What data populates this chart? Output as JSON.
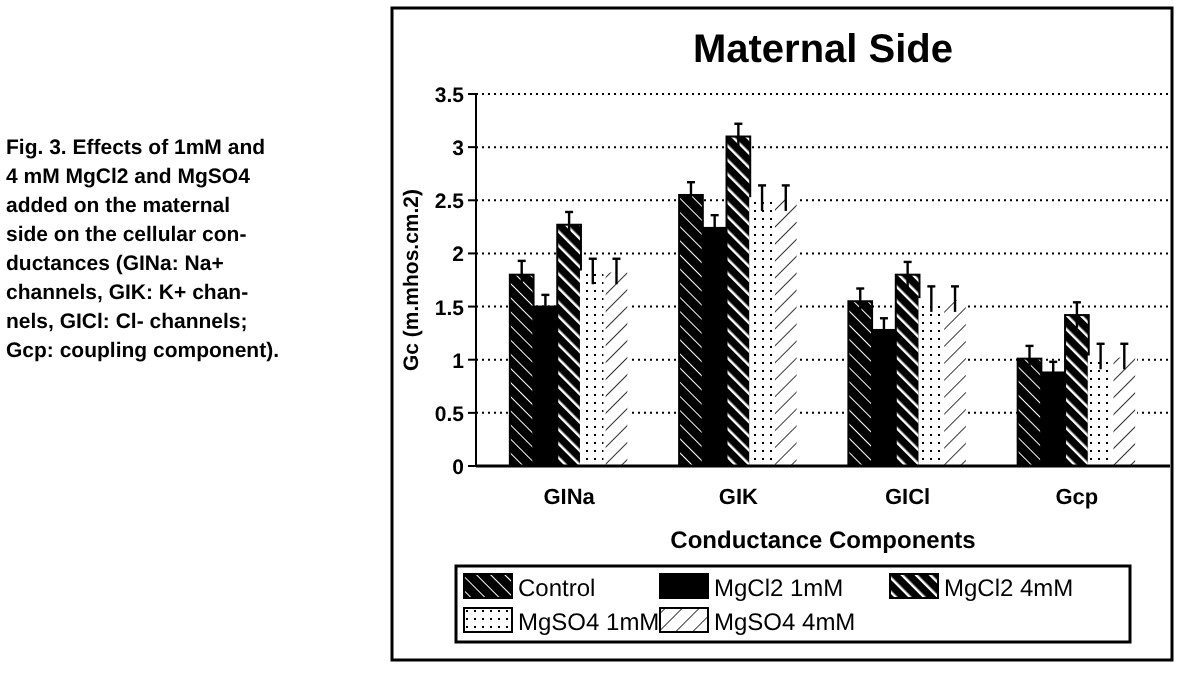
{
  "chart_data": {
    "type": "bar",
    "title": "Maternal Side",
    "xlabel": "Conductance Components",
    "ylabel": "Gc (m.mhos.cm.2)",
    "annotations": [
      "Fig. 3.  Effects of 1mM and\n4 mM MgCl2 and MgSO4\nadded on the maternal\nside on the cellular con-\nductances (GINa: Na+\nchannels, GIK: K+ chan-\nnels, GICl: Cl- channels;\nGcp: coupling component)."
    ],
    "categories": [
      "GINa",
      "GIK",
      "GICl",
      "Gcp"
    ],
    "series": [
      {
        "name": "Control",
        "color": "#000000",
        "values": [
          1.8,
          2.55,
          1.55,
          1.01
        ],
        "errors": [
          0.13,
          0.12,
          0.12,
          0.12
        ]
      },
      {
        "name": "MgCl2 1mM",
        "color": "#000000",
        "values": [
          1.5,
          2.24,
          1.28,
          0.88
        ],
        "errors": [
          0.11,
          0.12,
          0.11,
          0.1
        ]
      },
      {
        "name": "MgCl2 4mM",
        "color": "#000000",
        "values": [
          2.27,
          3.1,
          1.8,
          1.42
        ],
        "errors": [
          0.12,
          0.12,
          0.12,
          0.12
        ]
      },
      {
        "name": "MgSO4 1mM",
        "color": "#ffffff",
        "values": [
          1.83,
          2.52,
          1.57,
          1.03
        ],
        "errors": [
          0.12,
          0.12,
          0.12,
          0.12
        ]
      },
      {
        "name": "MgSO4 4mM",
        "color": "#ffffff",
        "values": [
          1.83,
          2.52,
          1.57,
          1.03
        ],
        "errors": [
          0.12,
          0.12,
          0.12,
          0.12
        ]
      }
    ],
    "ylim": [
      0,
      3.5
    ],
    "yticks": [
      0,
      0.5,
      1,
      1.5,
      2,
      2.5,
      3,
      3.5
    ],
    "grid": "y",
    "legend": "bottom"
  }
}
